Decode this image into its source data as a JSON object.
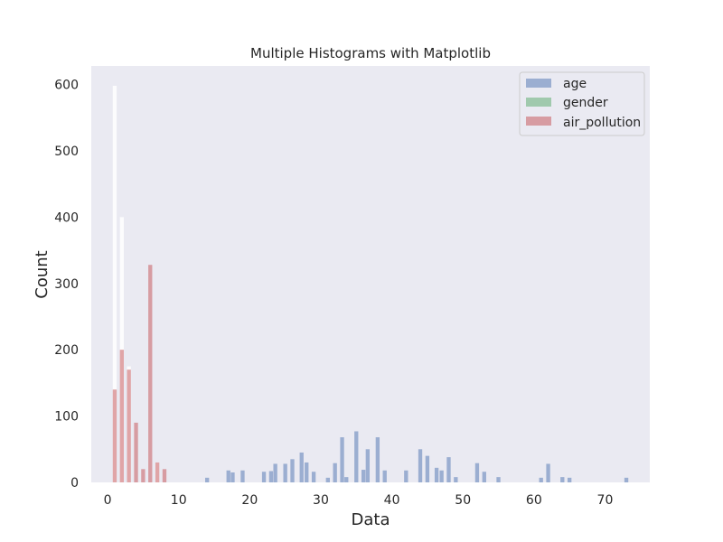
{
  "chart_data": {
    "type": "bar",
    "title": "Multiple Histograms with Matplotlib",
    "xlabel": "Data",
    "ylabel": "Count",
    "xlim": [
      -2.3,
      76.3
    ],
    "ylim": [
      0,
      628
    ],
    "xticks": [
      0,
      10,
      20,
      30,
      40,
      50,
      60,
      70
    ],
    "yticks": [
      0,
      100,
      200,
      300,
      400,
      500,
      600
    ],
    "bin_width": 0.55,
    "grid": false,
    "legend_position": "top-right",
    "plot_background": "#eaeaf2",
    "series": [
      {
        "name": "age",
        "color": "#4c72b0",
        "alpha": 0.5,
        "x": [
          14,
          17,
          17.6,
          19,
          22,
          23,
          23.6,
          25,
          26,
          27.3,
          28,
          29,
          31,
          32,
          33,
          33.6,
          35,
          36,
          36.6,
          38,
          39,
          42,
          44,
          45,
          46.3,
          47,
          48,
          49,
          52,
          53,
          55,
          61,
          62,
          64,
          65,
          73
        ],
        "values": [
          7,
          18,
          15,
          18,
          16,
          17,
          28,
          28,
          35,
          45,
          30,
          16,
          7,
          29,
          68,
          8,
          77,
          19,
          50,
          68,
          18,
          18,
          50,
          40,
          22,
          18,
          38,
          8,
          29,
          16,
          8,
          7,
          28,
          8,
          7,
          7
        ]
      },
      {
        "name": "gender",
        "color": "#55a868",
        "alpha": 0.5,
        "x": [],
        "values": []
      },
      {
        "name": "air_pollution",
        "color": "#c44e52",
        "alpha": 0.5,
        "x": [
          1,
          2,
          3,
          4,
          5,
          6,
          7,
          8
        ],
        "values": [
          140,
          200,
          170,
          90,
          20,
          328,
          30,
          20
        ]
      }
    ],
    "overlay_bars": {
      "color": "#ffffff",
      "x": [
        1,
        2,
        3,
        7
      ],
      "values": [
        598,
        400,
        175,
        30
      ]
    }
  }
}
